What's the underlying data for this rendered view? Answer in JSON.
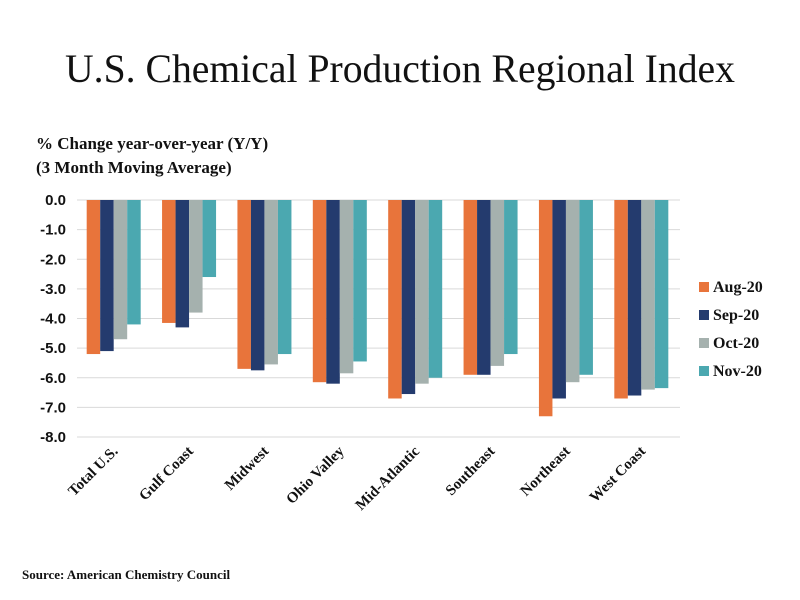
{
  "chart_data": {
    "type": "bar",
    "title": "U.S. Chemical Production Regional Index",
    "subtitle_lines": [
      "% Change year-over-year (Y/Y)",
      "(3 Month Moving Average)"
    ],
    "xlabel": "",
    "ylabel": "% Change year-over-year (Y/Y) (3 Month Moving Average)",
    "ylim": [
      -8.0,
      0.0
    ],
    "yticks": [
      0.0,
      -1.0,
      -2.0,
      -3.0,
      -4.0,
      -5.0,
      -6.0,
      -7.0,
      -8.0
    ],
    "ytick_labels": [
      "0.0",
      "-1.0",
      "-2.0",
      "-3.0",
      "-4.0",
      "-5.0",
      "-6.0",
      "-7.0",
      "-8.0"
    ],
    "grid": true,
    "legend_position": "right",
    "categories": [
      "Total U.S.",
      "Gulf Coast",
      "Midwest",
      "Ohio Valley",
      "Mid-Atlantic",
      "Southeast",
      "Northeast",
      "West Coast"
    ],
    "series": [
      {
        "name": "Aug-20",
        "color": "#E8743B",
        "values": [
          -5.2,
          -4.15,
          -5.7,
          -6.15,
          -6.7,
          -5.9,
          -7.3,
          -6.7
        ]
      },
      {
        "name": "Sep-20",
        "color": "#243B6E",
        "values": [
          -5.1,
          -4.3,
          -5.75,
          -6.2,
          -6.55,
          -5.9,
          -6.7,
          -6.6
        ]
      },
      {
        "name": "Oct-20",
        "color": "#A5B1AE",
        "values": [
          -4.7,
          -3.8,
          -5.55,
          -5.85,
          -6.2,
          -5.6,
          -6.15,
          -6.4
        ]
      },
      {
        "name": "Nov-20",
        "color": "#4BA8B0",
        "values": [
          -4.2,
          -2.6,
          -5.2,
          -5.45,
          -6.0,
          -5.2,
          -5.9,
          -6.35
        ]
      }
    ],
    "source": "Source: American Chemistry Council"
  }
}
